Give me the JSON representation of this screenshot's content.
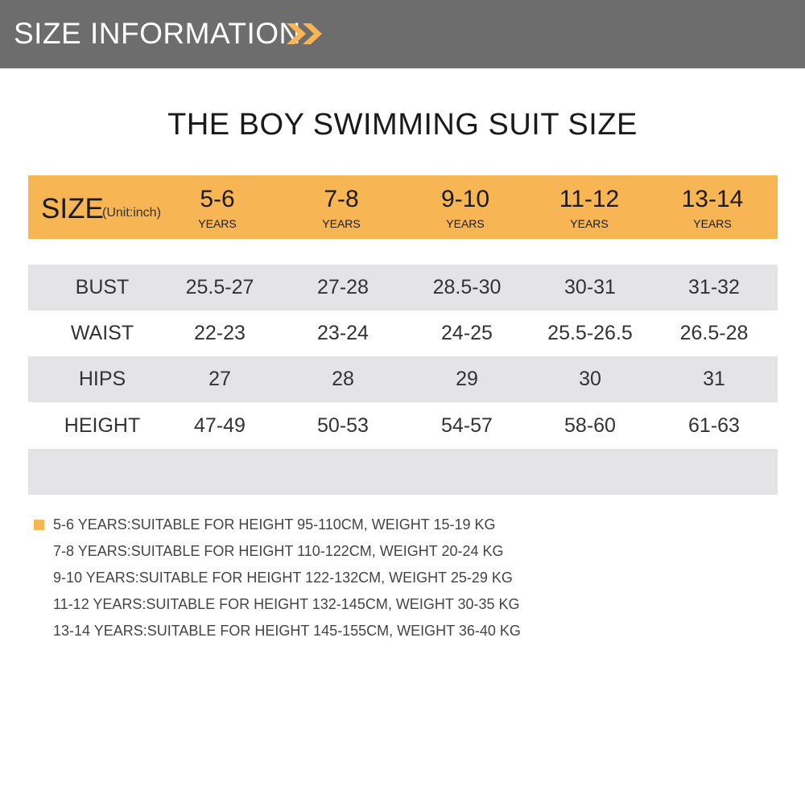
{
  "banner": {
    "title": "SIZE INFORMATION",
    "icon": "double-chevron-right-icon",
    "background_color": "#6d6d6d",
    "icon_color": "#f8b553"
  },
  "title": "THE BOY SWIMMING SUIT SIZE",
  "accent_color": "#f8b553",
  "header": {
    "size_label": "SIZE",
    "unit_label": "(Unit:inch)",
    "columns": [
      {
        "age": "5-6",
        "years": "YEARS"
      },
      {
        "age": "7-8",
        "years": "YEARS"
      },
      {
        "age": "9-10",
        "years": "YEARS"
      },
      {
        "age": "11-12",
        "years": "YEARS"
      },
      {
        "age": "13-14",
        "years": "YEARS"
      }
    ]
  },
  "rows": [
    {
      "label": "BUST",
      "values": [
        "25.5-27",
        "27-28",
        "28.5-30",
        "30-31",
        "31-32"
      ]
    },
    {
      "label": "WAIST",
      "values": [
        "22-23",
        "23-24",
        "24-25",
        "25.5-26.5",
        "26.5-28"
      ]
    },
    {
      "label": "HIPS",
      "values": [
        "27",
        "28",
        "29",
        "30",
        "31"
      ]
    },
    {
      "label": "HEIGHT",
      "values": [
        "47-49",
        "50-53",
        "54-57",
        "58-60",
        "61-63"
      ]
    }
  ],
  "notes": [
    "5-6 YEARS:SUITABLE FOR HEIGHT 95-110CM, WEIGHT 15-19 KG",
    "7-8 YEARS:SUITABLE FOR HEIGHT 110-122CM, WEIGHT 20-24 KG",
    "9-10 YEARS:SUITABLE FOR HEIGHT 122-132CM, WEIGHT 25-29 KG",
    "11-12 YEARS:SUITABLE FOR HEIGHT 132-145CM, WEIGHT 30-35 KG",
    "13-14 YEARS:SUITABLE FOR HEIGHT 145-155CM, WEIGHT 36-40 KG"
  ]
}
